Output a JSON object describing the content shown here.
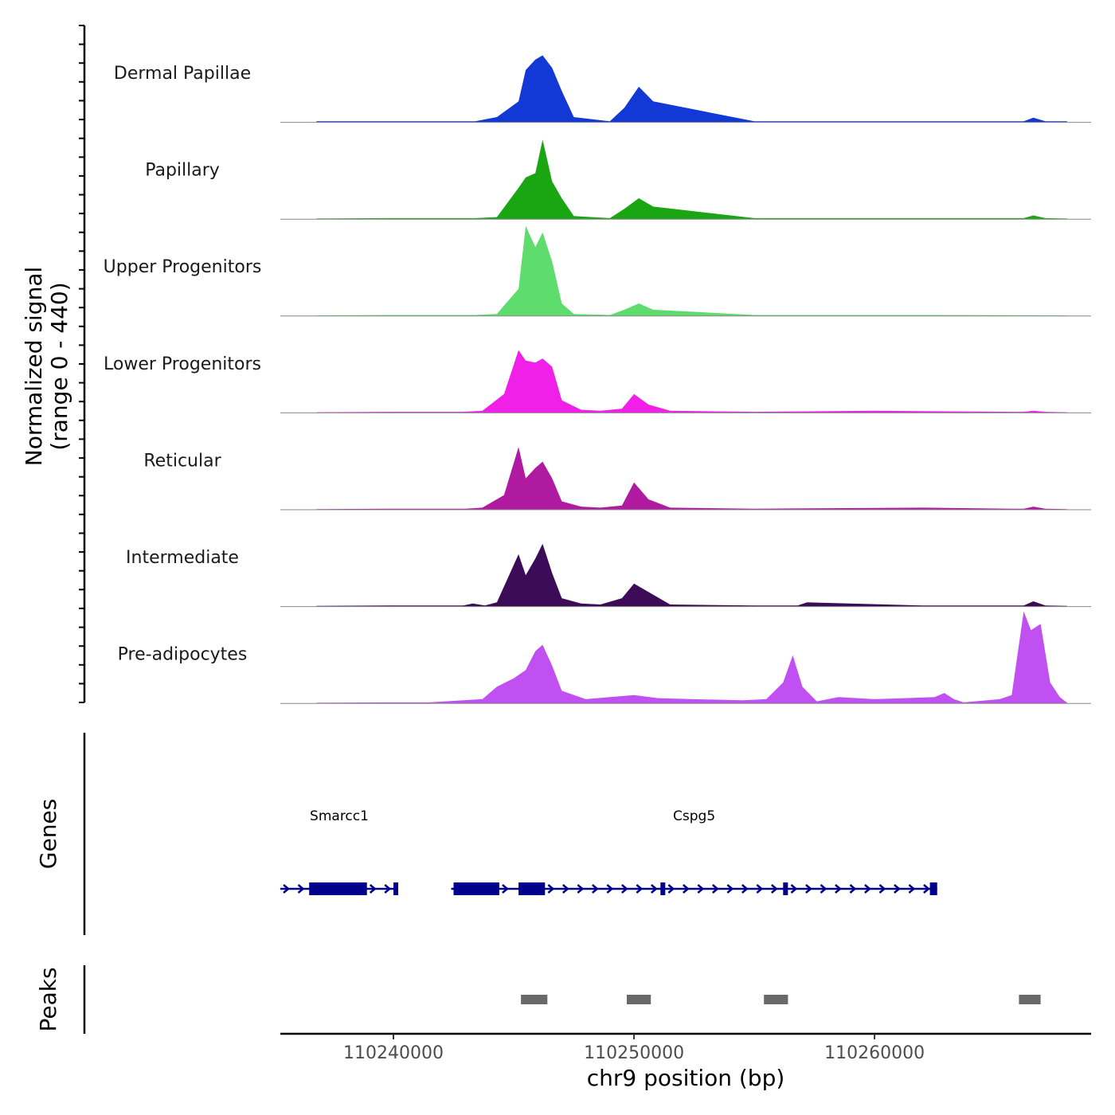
{
  "chart_data": {
    "type": "area",
    "title": "",
    "ylabel_line1": "Normalized signal",
    "ylabel_line2": "(range 0 - 440)",
    "y_range": [
      0,
      440
    ],
    "xlabel": "chr9 position (bp)",
    "x_range": [
      110235300,
      110269000
    ],
    "x_ticks": [
      110240000,
      110250000,
      110260000
    ],
    "x_tick_labels": [
      "110240000",
      "110250000",
      "110260000"
    ],
    "colors": {
      "Dermal Papillae": "#1239d6",
      "Papillary": "#1aa612",
      "Upper Progenitors": "#5fdc6e",
      "Lower Progenitors": "#f020e8",
      "Reticular": "#b01aa0",
      "Intermediate": "#3d0c58",
      "Pre-adipocytes": "#c050f2",
      "genes": "#00008b",
      "peaks": "#696969"
    },
    "series": [
      {
        "name": "Dermal Papillae",
        "x": [
          110236800,
          110239800,
          110243400,
          110244300,
          110245200,
          110245500,
          110245900,
          110246200,
          110246600,
          110247000,
          110247500,
          110249000,
          110249600,
          110250200,
          110250800,
          110255000,
          110262000,
          110265700,
          110266200,
          110266600,
          110267100,
          110268000
        ],
        "values": [
          5,
          5,
          5,
          25,
          100,
          250,
          300,
          320,
          260,
          150,
          25,
          5,
          70,
          170,
          100,
          5,
          5,
          5,
          5,
          22,
          5,
          5
        ]
      },
      {
        "name": "Papillary",
        "x": [
          110236800,
          110239800,
          110243400,
          110244300,
          110245200,
          110245500,
          110245900,
          110246200,
          110246600,
          110247000,
          110247500,
          110249000,
          110249600,
          110250200,
          110250800,
          110255000,
          110259000,
          110265700,
          110266200,
          110266600,
          110267100,
          110268000
        ],
        "values": [
          3,
          5,
          5,
          10,
          150,
          200,
          220,
          380,
          180,
          100,
          15,
          5,
          50,
          100,
          60,
          5,
          5,
          5,
          5,
          18,
          5,
          3
        ]
      },
      {
        "name": "Upper Progenitors",
        "x": [
          110236800,
          110239800,
          110243400,
          110244300,
          110245200,
          110245500,
          110245900,
          110246200,
          110246600,
          110247000,
          110247500,
          110249000,
          110249600,
          110250200,
          110250800,
          110255000,
          110262000,
          110268000
        ],
        "values": [
          3,
          5,
          5,
          10,
          130,
          430,
          330,
          400,
          260,
          60,
          10,
          5,
          30,
          60,
          30,
          5,
          5,
          3
        ]
      },
      {
        "name": "Lower Progenitors",
        "x": [
          110236800,
          110239800,
          110242900,
          110243700,
          110244600,
          110245200,
          110245500,
          110245900,
          110246200,
          110246600,
          110247000,
          110247800,
          110248600,
          110249500,
          110250000,
          110250600,
          110251500,
          110255000,
          110260000,
          110265700,
          110266200,
          110266600,
          110267100,
          110268000
        ],
        "values": [
          3,
          5,
          5,
          10,
          90,
          300,
          250,
          240,
          260,
          220,
          60,
          15,
          10,
          20,
          90,
          40,
          10,
          5,
          10,
          5,
          5,
          10,
          5,
          3
        ]
      },
      {
        "name": "Reticular",
        "x": [
          110236800,
          110239800,
          110243000,
          110243700,
          110244600,
          110245200,
          110245500,
          110245900,
          110246200,
          110246600,
          110247000,
          110247800,
          110248600,
          110249500,
          110250000,
          110250600,
          110251500,
          110255000,
          110262000,
          110265700,
          110266200,
          110266600,
          110267100,
          110268000
        ],
        "values": [
          3,
          5,
          5,
          10,
          70,
          300,
          150,
          200,
          230,
          150,
          40,
          15,
          10,
          20,
          130,
          50,
          10,
          5,
          10,
          5,
          5,
          15,
          5,
          3
        ]
      },
      {
        "name": "Intermediate",
        "x": [
          110236800,
          110239800,
          110242900,
          110243300,
          110243800,
          110244300,
          110245200,
          110245500,
          110245900,
          110246200,
          110246600,
          110247000,
          110247800,
          110248600,
          110249500,
          110250000,
          110250600,
          110251500,
          110255000,
          110256800,
          110257200,
          110262000,
          110265700,
          110266200,
          110266600,
          110267100,
          110268000
        ],
        "values": [
          3,
          5,
          5,
          15,
          5,
          20,
          250,
          150,
          230,
          300,
          160,
          40,
          15,
          10,
          40,
          110,
          70,
          10,
          5,
          5,
          20,
          5,
          5,
          5,
          25,
          5,
          3
        ]
      },
      {
        "name": "Pre-adipocytes",
        "x": [
          110236800,
          110239800,
          110241500,
          110242900,
          110243700,
          110244300,
          110245000,
          110245500,
          110245900,
          110246200,
          110246600,
          110247000,
          110248000,
          110249000,
          110250000,
          110251000,
          110252500,
          110254500,
          110255500,
          110256200,
          110256600,
          110257000,
          110257600,
          110258500,
          110260000,
          110262500,
          110262900,
          110263300,
          110263700,
          110265200,
          110265700,
          110266200,
          110266500,
          110266900,
          110267300,
          110267700,
          110268000
        ],
        "values": [
          3,
          5,
          5,
          15,
          20,
          80,
          120,
          160,
          250,
          280,
          180,
          60,
          20,
          30,
          40,
          25,
          20,
          15,
          20,
          100,
          230,
          80,
          10,
          30,
          20,
          30,
          50,
          20,
          5,
          20,
          40,
          440,
          350,
          380,
          100,
          30,
          3
        ]
      }
    ],
    "genes": [
      {
        "name": "Smarcc1",
        "start": 110235300,
        "end": 110240200,
        "strand": "+",
        "exons": [
          [
            110236500,
            110238900
          ],
          [
            110240000,
            110240200
          ]
        ]
      },
      {
        "name": "Cspg5",
        "start": 110242400,
        "end": 110262600,
        "strand": "+",
        "exons": [
          [
            110242500,
            110244400
          ],
          [
            110245200,
            110246300
          ],
          [
            110251100,
            110251300
          ],
          [
            110256200,
            110256400
          ],
          [
            110262300,
            110262600
          ]
        ]
      }
    ],
    "peaks": [
      [
        110245300,
        110246400
      ],
      [
        110249700,
        110250700
      ],
      [
        110255400,
        110256400
      ],
      [
        110266000,
        110266900
      ]
    ],
    "grid": false,
    "legend": "none"
  },
  "panels": {
    "genes_label": "Genes",
    "peaks_label": "Peaks"
  }
}
